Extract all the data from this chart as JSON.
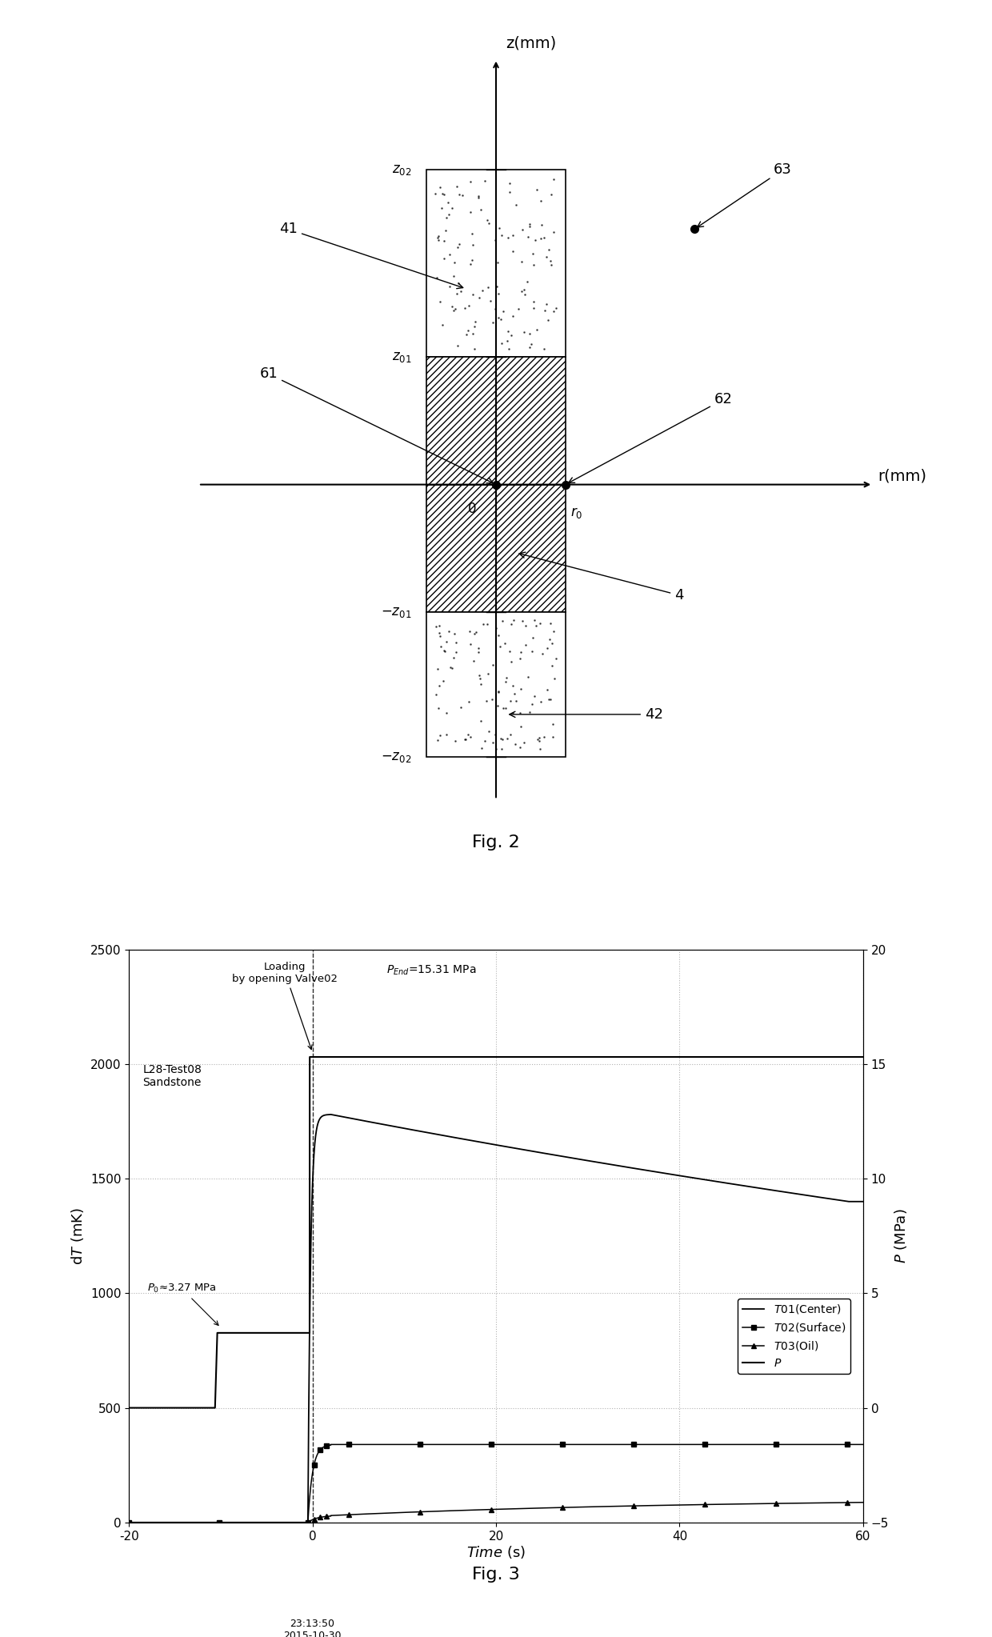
{
  "fig2": {
    "title": "Fig. 2",
    "z_axis_label": "z(mm)",
    "r_axis_label": "r(mm)"
  },
  "fig3": {
    "title": "Fig. 3",
    "xlim": [
      -20,
      60
    ],
    "ylim_left": [
      0,
      2500
    ],
    "ylim_right": [
      -5,
      20
    ],
    "xticks": [
      -20,
      0,
      20,
      40,
      60
    ],
    "yticks_left": [
      0,
      500,
      1000,
      1500,
      2000,
      2500
    ],
    "yticks_right": [
      -5,
      0,
      5,
      10,
      15,
      20
    ],
    "P0_val": 3.27,
    "P_end_val": 15.31
  }
}
